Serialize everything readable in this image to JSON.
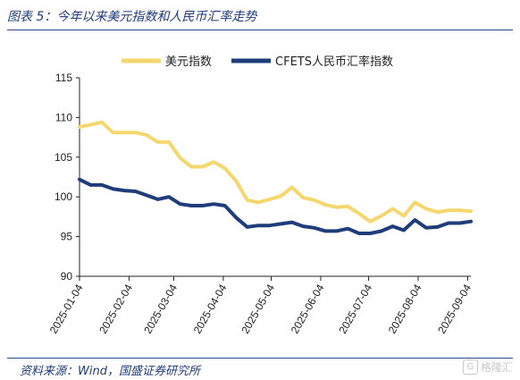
{
  "figure": {
    "title": "图表 5：今年以来美元指数和人民币汇率走势",
    "source": "资料来源：Wind，国盛证券研究所",
    "watermark": "格隆汇"
  },
  "chart_data": {
    "type": "line",
    "title": "",
    "xlabel": "",
    "ylabel": "",
    "ylim": [
      90,
      115
    ],
    "yticks": [
      90,
      95,
      100,
      105,
      110,
      115
    ],
    "grid": false,
    "legend_position": "top",
    "x_dates": [
      "2025-01-04",
      "2025-01-11",
      "2025-01-18",
      "2025-01-25",
      "2025-02-01",
      "2025-02-08",
      "2025-02-15",
      "2025-02-22",
      "2025-03-01",
      "2025-03-08",
      "2025-03-15",
      "2025-03-22",
      "2025-03-29",
      "2025-04-05",
      "2025-04-12",
      "2025-04-19",
      "2025-04-26",
      "2025-05-03",
      "2025-05-10",
      "2025-05-17",
      "2025-05-24",
      "2025-05-31",
      "2025-06-07",
      "2025-06-14",
      "2025-06-21",
      "2025-06-28",
      "2025-07-05",
      "2025-07-12",
      "2025-07-19",
      "2025-07-26",
      "2025-08-02",
      "2025-08-09",
      "2025-08-16",
      "2025-08-23",
      "2025-08-30",
      "2025-09-06"
    ],
    "x_range": [
      "2025-01-04",
      "2025-09-06"
    ],
    "xtick_labels": [
      "2025-01-04",
      "2025-02-04",
      "2025-03-04",
      "2025-04-04",
      "2025-05-04",
      "2025-06-04",
      "2025-07-04",
      "2025-08-04",
      "2025-09-04"
    ],
    "series": [
      {
        "name": "美元指数",
        "color": "#f5d76e",
        "values": [
          108.8,
          109.1,
          109.4,
          108.1,
          108.1,
          108.1,
          107.8,
          106.9,
          106.9,
          104.9,
          103.8,
          103.8,
          104.4,
          103.6,
          102.0,
          99.6,
          99.3,
          99.7,
          100.1,
          101.2,
          99.9,
          99.6,
          99.0,
          98.7,
          98.8,
          97.9,
          96.9,
          97.6,
          98.5,
          97.6,
          99.3,
          98.5,
          98.1,
          98.3,
          98.3,
          98.2
        ]
      },
      {
        "name": "CFETS人民币汇率指数",
        "color": "#1f3d7a",
        "values": [
          102.2,
          101.5,
          101.5,
          101.0,
          100.8,
          100.7,
          100.2,
          99.7,
          100.0,
          99.1,
          98.9,
          98.9,
          99.1,
          98.9,
          97.4,
          96.2,
          96.4,
          96.4,
          96.6,
          96.8,
          96.3,
          96.1,
          95.7,
          95.7,
          96.0,
          95.4,
          95.4,
          95.7,
          96.3,
          95.8,
          97.1,
          96.1,
          96.2,
          96.7,
          96.7,
          96.9
        ]
      }
    ]
  }
}
